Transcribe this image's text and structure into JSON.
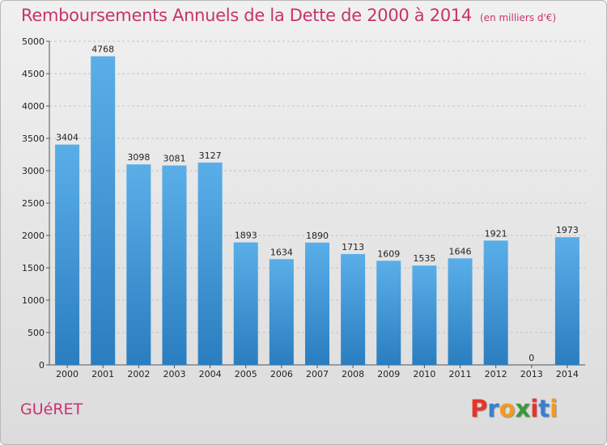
{
  "header": {
    "title": "Remboursements Annuels de la Dette de 2000 à 2014",
    "subtitle": "(en milliers d'€)"
  },
  "footer": {
    "commune": "GUéRET",
    "logo_letters": [
      "P",
      "r",
      "o",
      "x",
      "i",
      "t",
      "i"
    ]
  },
  "colors": {
    "title": "#c8326e",
    "bar_light": "#5aaee8",
    "bar_dark": "#2a7ec0",
    "logo": [
      "#e8322a",
      "#3a7fd0",
      "#f29a1f",
      "#3a9a3a",
      "#e8322a",
      "#3a7fd0",
      "#f29a1f"
    ]
  },
  "chart_data": {
    "type": "bar",
    "title": "Remboursements Annuels de la Dette de 2000 à 2014",
    "subtitle": "(en milliers d'€)",
    "categories": [
      "2000",
      "2001",
      "2002",
      "2003",
      "2004",
      "2005",
      "2006",
      "2007",
      "2008",
      "2009",
      "2010",
      "2011",
      "2012",
      "2013",
      "2014"
    ],
    "values": [
      3404,
      4768,
      3098,
      3081,
      3127,
      1893,
      1634,
      1890,
      1713,
      1609,
      1535,
      1646,
      1921,
      0,
      1973
    ],
    "ylim": [
      0,
      5000
    ],
    "yticks": [
      0,
      500,
      1000,
      1500,
      2000,
      2500,
      3000,
      3500,
      4000,
      4500,
      5000
    ],
    "grid": true,
    "legend": "none"
  }
}
